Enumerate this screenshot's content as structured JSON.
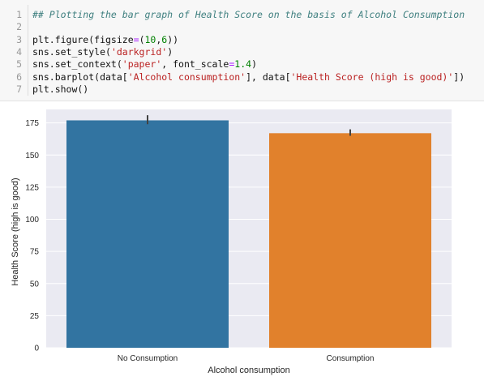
{
  "code_cell": {
    "lines": [
      {
        "n": "1",
        "segments": [
          {
            "t": "## Plotting the bar graph of Health Score on the basis of Alcohol Consumption",
            "c": "comment"
          }
        ]
      },
      {
        "n": "2",
        "segments": []
      },
      {
        "n": "3",
        "segments": [
          {
            "t": "plt.figure(figsize",
            "c": ""
          },
          {
            "t": "=",
            "c": "op"
          },
          {
            "t": "(",
            "c": ""
          },
          {
            "t": "10",
            "c": "num"
          },
          {
            "t": ",",
            "c": ""
          },
          {
            "t": "6",
            "c": "num"
          },
          {
            "t": "))",
            "c": ""
          }
        ]
      },
      {
        "n": "4",
        "segments": [
          {
            "t": "sns.set_style(",
            "c": ""
          },
          {
            "t": "'darkgrid'",
            "c": "str"
          },
          {
            "t": ")",
            "c": ""
          }
        ]
      },
      {
        "n": "5",
        "segments": [
          {
            "t": "sns.set_context(",
            "c": ""
          },
          {
            "t": "'paper'",
            "c": "str"
          },
          {
            "t": ", font_scale",
            "c": ""
          },
          {
            "t": "=",
            "c": "op"
          },
          {
            "t": "1.4",
            "c": "num"
          },
          {
            "t": ")",
            "c": ""
          }
        ]
      },
      {
        "n": "6",
        "segments": [
          {
            "t": "sns.barplot(data[",
            "c": ""
          },
          {
            "t": "'Alcohol consumption'",
            "c": "str"
          },
          {
            "t": "], data[",
            "c": ""
          },
          {
            "t": "'Health Score (high is good)'",
            "c": "str"
          },
          {
            "t": "])",
            "c": ""
          }
        ]
      },
      {
        "n": "7",
        "segments": [
          {
            "t": "plt.show()",
            "c": ""
          }
        ]
      }
    ]
  },
  "chart_data": {
    "type": "bar",
    "categories": [
      "No Consumption",
      "Consumption"
    ],
    "values": [
      177,
      167
    ],
    "error_bars": [
      [
        174,
        181
      ],
      [
        165,
        170
      ]
    ],
    "colors": [
      "#3274a1",
      "#e1812c"
    ],
    "xlabel": "Alcohol consumption",
    "ylabel": "Health Score (high is good)",
    "yticks": [
      0,
      25,
      50,
      75,
      100,
      125,
      150,
      175
    ],
    "ylim": [
      0,
      185.5
    ],
    "grid": true,
    "background": "#eaeaf2",
    "style": "darkgrid"
  }
}
